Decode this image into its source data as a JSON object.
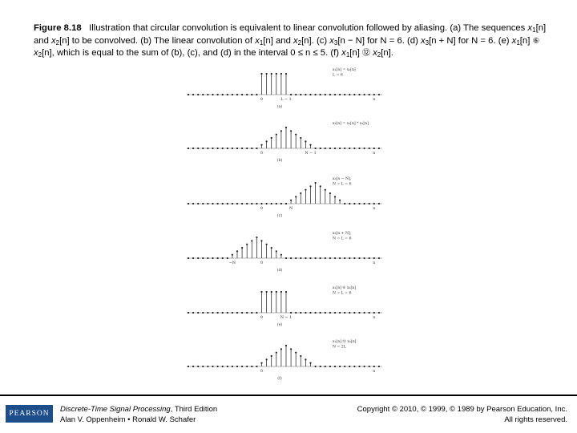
{
  "caption": {
    "label": "Figure 8.18",
    "t1": "Illustration that circular convolution is equivalent to linear convolution followed by aliasing. (a) The sequences ",
    "x": "x",
    "s1": "1",
    "s2": "2",
    "s3": "3",
    "n": "[n]",
    "and": " and ",
    "t2": " to be convolved. (b) The linear convolution of ",
    "t3": ". (c) ",
    "nmN": "[n − N]",
    "t4": " for N = 6. (d) ",
    "npN": "[n + N]",
    "t5": " for N = 6. (e) ",
    "circ6": "⑥",
    "t6": ", which is equal to the sum of (b), (c), and (d) in the interval 0 ≤ n ≤ 5. (f) ",
    "circ12": "⑫",
    "end": "."
  },
  "panels": [
    {
      "id": "a",
      "label": "(a)",
      "ticks": [
        "0",
        "L − 1",
        "n"
      ],
      "legend": [
        "x₁[n] = x₂[n]",
        "L = 6"
      ]
    },
    {
      "id": "b",
      "label": "(b)",
      "ticks": [
        "0",
        "N − 1",
        "n"
      ],
      "legend": [
        "x₃[n] = x₁[n] * x₂[n]"
      ]
    },
    {
      "id": "c",
      "label": "(c)",
      "ticks": [
        "0",
        "N",
        "n"
      ],
      "legend": [
        "x₃[n − N],",
        "N = L = 6"
      ]
    },
    {
      "id": "d",
      "label": "(d)",
      "ticks": [
        "−N",
        "0",
        "n"
      ],
      "legend": [
        "x₃[n + N],",
        "N = L = 6"
      ]
    },
    {
      "id": "e",
      "label": "(e)",
      "ticks": [
        "0",
        "N − 1",
        "n"
      ],
      "legend": [
        "x₁[n] ⑥ x₂[n]",
        "N = L = 6"
      ]
    },
    {
      "id": "f",
      "label": "(f)",
      "ticks": [
        "0",
        "n"
      ],
      "legend": [
        "x₁[n] ⑫ x₂[n]",
        "N = 2L"
      ]
    }
  ],
  "footer": {
    "logo": "PEARSON",
    "book_title": "Discrete-Time Signal Processing",
    "book_edition": ", Third Edition",
    "authors": "Alan V. Oppenheim • Ronald W. Schafer",
    "copyright": "Copyright © 2010, © 1999, © 1989 by Pearson Education, Inc.",
    "rights": "All rights reserved."
  }
}
